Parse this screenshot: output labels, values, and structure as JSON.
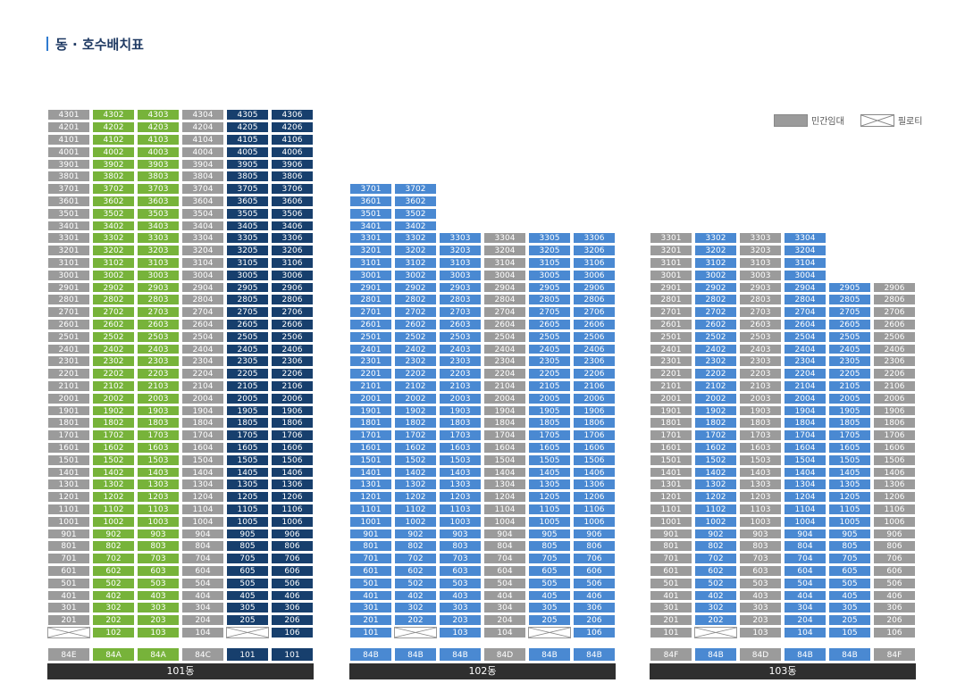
{
  "page_title": "동 · 호수배치표",
  "legend": {
    "rental_label": "민간임대",
    "piloti_label": "필로티",
    "rental_color": "#9b9b9b"
  },
  "colors": {
    "gray": "#9b9b9b",
    "green": "#77b33a",
    "navy": "#173f6d",
    "blue": "#4a89d2",
    "footer": "#2f2f2f"
  },
  "buildings": [
    {
      "name": "101동",
      "top_floor": 43,
      "columns": [
        {
          "type_label": "84E",
          "color": "gray",
          "max_floor": 43,
          "piloti": true,
          "ground_label": ""
        },
        {
          "type_label": "84A",
          "color": "green",
          "max_floor": 43,
          "piloti": false,
          "ground_label": "102"
        },
        {
          "type_label": "84A",
          "color": "green",
          "max_floor": 43,
          "piloti": false,
          "ground_label": "103"
        },
        {
          "type_label": "84C",
          "color": "gray",
          "max_floor": 43,
          "piloti": false,
          "ground_label": "104"
        },
        {
          "type_label": "101",
          "color": "navy",
          "max_floor": 43,
          "piloti": true,
          "ground_label": ""
        },
        {
          "type_label": "101",
          "color": "navy",
          "max_floor": 43,
          "piloti": false,
          "ground_label": "106"
        }
      ]
    },
    {
      "name": "102동",
      "top_floor": 37,
      "columns": [
        {
          "type_label": "84B",
          "color": "blue",
          "max_floor": 37,
          "piloti": false,
          "ground_label": "101"
        },
        {
          "type_label": "84B",
          "color": "blue",
          "max_floor": 37,
          "piloti": true,
          "ground_label": ""
        },
        {
          "type_label": "84B",
          "color": "blue",
          "max_floor": 33,
          "piloti": false,
          "ground_label": "103"
        },
        {
          "type_label": "84D",
          "color": "gray",
          "max_floor": 33,
          "piloti": false,
          "ground_label": "104"
        },
        {
          "type_label": "84B",
          "color": "blue",
          "max_floor": 33,
          "piloti": true,
          "ground_label": ""
        },
        {
          "type_label": "84B",
          "color": "blue",
          "max_floor": 33,
          "piloti": false,
          "ground_label": "106"
        }
      ]
    },
    {
      "name": "103동",
      "top_floor": 33,
      "columns": [
        {
          "type_label": "84F",
          "color": "gray",
          "max_floor": 33,
          "piloti": false,
          "ground_label": "101"
        },
        {
          "type_label": "84B",
          "color": "blue",
          "max_floor": 33,
          "piloti": true,
          "ground_label": ""
        },
        {
          "type_label": "84D",
          "color": "gray",
          "max_floor": 33,
          "piloti": false,
          "ground_label": "103"
        },
        {
          "type_label": "84B",
          "color": "blue",
          "max_floor": 33,
          "piloti": false,
          "ground_label": "104"
        },
        {
          "type_label": "84B",
          "color": "blue",
          "max_floor": 29,
          "piloti": false,
          "ground_label": "105"
        },
        {
          "type_label": "84F",
          "color": "gray",
          "max_floor": 29,
          "piloti": false,
          "ground_label": "106"
        }
      ]
    }
  ]
}
